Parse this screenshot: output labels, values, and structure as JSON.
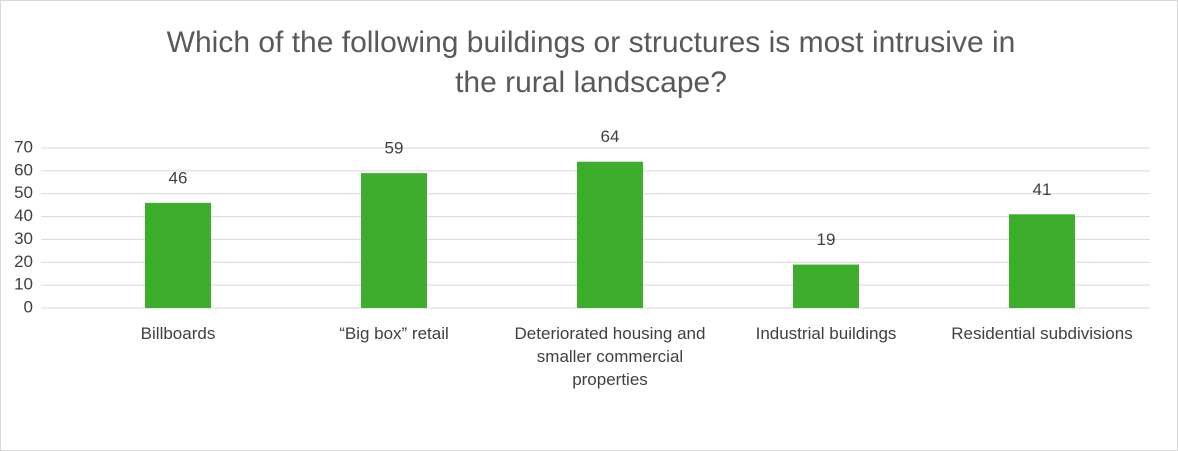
{
  "chart_data": {
    "type": "bar",
    "title": "Which of the following buildings or structures is most intrusive in the rural landscape?",
    "categories": [
      "Billboards",
      "“Big box” retail",
      "Deteriorated housing and smaller commercial properties",
      "Industrial buildings",
      "Residential subdivisions"
    ],
    "values": [
      46,
      59,
      64,
      19,
      41
    ],
    "color": "#3dae2b",
    "ylim": [
      0,
      70
    ],
    "yticks": [
      0,
      10,
      20,
      30,
      40,
      50,
      60,
      70
    ],
    "grid": true
  }
}
